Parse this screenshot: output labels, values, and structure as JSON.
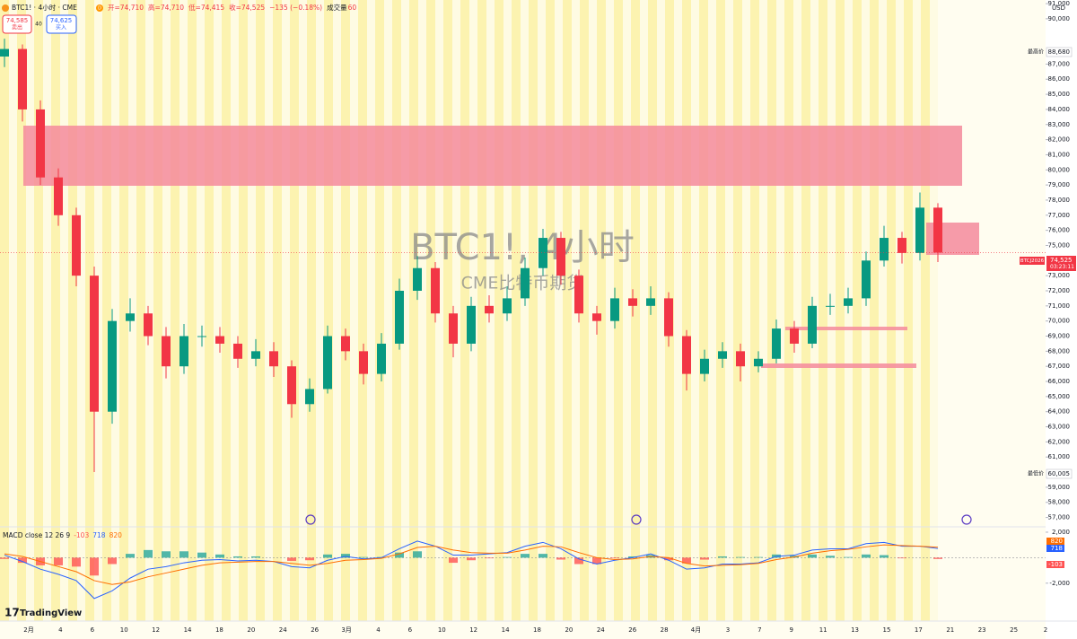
{
  "chart_data": [
    {
      "type": "candlestick",
      "up_color": "#089981",
      "down_color": "#f23645",
      "x_labels": [
        "2月",
        "4",
        "6",
        "10",
        "12",
        "14",
        "18",
        "20",
        "24",
        "26",
        "3月",
        "4",
        "6",
        "10",
        "12",
        "14",
        "18",
        "20",
        "24",
        "26",
        "28",
        "4月",
        "3",
        "7",
        "9",
        "11",
        "13",
        "15",
        "17",
        "21",
        "23",
        "25",
        "2"
      ],
      "open": [
        87500,
        88000,
        84000,
        79500,
        77000,
        73000,
        64000,
        70000,
        70500,
        69000,
        67000,
        69000,
        69000,
        68500,
        67500,
        68000,
        67000,
        64500,
        65500,
        69000,
        68000,
        66500,
        68500,
        72000,
        73500,
        70500,
        68500,
        71000,
        70500,
        71500,
        73500,
        75500,
        73000,
        70500,
        70000,
        71500,
        71000,
        71500,
        69000,
        66500,
        67500,
        68000,
        67000,
        67500,
        69500,
        68500,
        71000,
        71000,
        71500,
        74000,
        75500,
        74500,
        77500
      ],
      "high": [
        88680,
        88300,
        84600,
        80100,
        77500,
        73600,
        70800,
        71500,
        71000,
        69600,
        69800,
        69700,
        69600,
        69000,
        68800,
        68600,
        67400,
        66200,
        69700,
        69500,
        68500,
        69200,
        72800,
        74300,
        73900,
        71000,
        71600,
        71700,
        72300,
        74200,
        76100,
        75900,
        73400,
        71000,
        72200,
        72100,
        72300,
        71900,
        69400,
        68100,
        68600,
        68500,
        68000,
        70100,
        70000,
        71600,
        71800,
        72200,
        74600,
        76300,
        75900,
        78500,
        77800
      ],
      "low": [
        86800,
        83200,
        79000,
        76300,
        72300,
        60005,
        63200,
        69300,
        68400,
        66200,
        66500,
        68300,
        67900,
        66900,
        67000,
        66300,
        63600,
        64000,
        65200,
        67400,
        65800,
        66000,
        68100,
        71400,
        69900,
        67600,
        68000,
        69900,
        70000,
        71000,
        73000,
        72400,
        69900,
        69100,
        69500,
        70300,
        70400,
        68300,
        65400,
        66000,
        66900,
        66000,
        66600,
        67200,
        67900,
        68200,
        70400,
        70500,
        71000,
        73600,
        73800,
        74000,
        73900
      ],
      "close": [
        88000,
        84000,
        79500,
        77000,
        73000,
        64000,
        70000,
        70500,
        69000,
        67000,
        69000,
        69000,
        68500,
        67500,
        68000,
        67000,
        64500,
        65500,
        69000,
        68000,
        66500,
        68500,
        72000,
        73500,
        70500,
        68500,
        71000,
        70500,
        71500,
        73500,
        75500,
        73000,
        70500,
        70000,
        71500,
        71000,
        71500,
        69000,
        66500,
        67500,
        68000,
        67000,
        67500,
        69500,
        68500,
        71000,
        71000,
        71500,
        74000,
        75500,
        74500,
        77500,
        74525
      ],
      "ylim": [
        56500,
        91240
      ],
      "yticks": [
        {
          "value": 91000,
          "label": "91,000"
        },
        {
          "value": 90000,
          "label": "90,000"
        },
        {
          "value": 87000,
          "label": "87,000"
        },
        {
          "value": 86000,
          "label": "86,000"
        },
        {
          "value": 85000,
          "label": "85,000"
        },
        {
          "value": 84000,
          "label": "84,000"
        },
        {
          "value": 83000,
          "label": "83,000"
        },
        {
          "value": 82000,
          "label": "82,000"
        },
        {
          "value": 81000,
          "label": "81,000"
        },
        {
          "value": 80000,
          "label": "80,000"
        },
        {
          "value": 79000,
          "label": "79,000"
        },
        {
          "value": 78000,
          "label": "78,000"
        },
        {
          "value": 77000,
          "label": "77,000"
        },
        {
          "value": 76000,
          "label": "76,000"
        },
        {
          "value": 75000,
          "label": "75,000"
        },
        {
          "value": 73000,
          "label": "73,000"
        },
        {
          "value": 72000,
          "label": "72,000"
        },
        {
          "value": 71000,
          "label": "71,000"
        },
        {
          "value": 70000,
          "label": "70,000"
        },
        {
          "value": 69000,
          "label": "69,000"
        },
        {
          "value": 68000,
          "label": "68,000"
        },
        {
          "value": 67000,
          "label": "67,000"
        },
        {
          "value": 66000,
          "label": "66,000"
        },
        {
          "value": 65000,
          "label": "65,000"
        },
        {
          "value": 64000,
          "label": "64,000"
        },
        {
          "value": 63000,
          "label": "63,000"
        },
        {
          "value": 62000,
          "label": "62,000"
        },
        {
          "value": 61000,
          "label": "61,000"
        },
        {
          "value": 59000,
          "label": "59,000"
        },
        {
          "value": 58000,
          "label": "58,000"
        },
        {
          "value": 57000,
          "label": "57,000"
        }
      ],
      "watermark": "BTC1!, 4小时",
      "watermark_subtitle": "CME比特币期货"
    },
    {
      "type": "macd",
      "title": "MACD close 12 26 9",
      "histogram": {
        "values": [
          -100,
          -400,
          -600,
          -600,
          -700,
          -1400,
          -500,
          300,
          600,
          500,
          500,
          400,
          250,
          100,
          100,
          0,
          -250,
          -200,
          250,
          300,
          50,
          50,
          400,
          500,
          0,
          -400,
          -200,
          -50,
          50,
          300,
          300,
          -150,
          -500,
          -500,
          -50,
          100,
          200,
          -200,
          -450,
          -150,
          100,
          50,
          50,
          250,
          150,
          250,
          150,
          50,
          250,
          200,
          -50,
          0,
          -103
        ],
        "positive_color": "#26a69a",
        "negative_color": "#ff5252"
      },
      "series": [
        {
          "name": "MACD",
          "color": "#2962ff",
          "values": [
            200,
            -300,
            -900,
            -1300,
            -1800,
            -3200,
            -2600,
            -1600,
            -900,
            -700,
            -400,
            -200,
            -150,
            -250,
            -200,
            -300,
            -700,
            -800,
            -200,
            100,
            -100,
            0,
            700,
            1300,
            900,
            200,
            200,
            300,
            400,
            900,
            1200,
            700,
            -100,
            -500,
            -200,
            0,
            300,
            -200,
            -900,
            -800,
            -500,
            -500,
            -400,
            100,
            200,
            600,
            700,
            700,
            1100,
            1200,
            900,
            900,
            718
          ]
        },
        {
          "name": "Signal",
          "color": "#ff6d00",
          "values": [
            300,
            100,
            -300,
            -700,
            -1100,
            -1800,
            -2100,
            -1900,
            -1500,
            -1200,
            -900,
            -600,
            -400,
            -350,
            -300,
            -300,
            -450,
            -600,
            -450,
            -200,
            -150,
            -50,
            300,
            800,
            900,
            600,
            400,
            350,
            350,
            600,
            900,
            850,
            400,
            0,
            -150,
            -100,
            100,
            0,
            -450,
            -650,
            -600,
            -550,
            -450,
            -150,
            50,
            350,
            550,
            650,
            850,
            1000,
            950,
            900,
            820
          ]
        }
      ],
      "ylim": [
        -4900,
        2350
      ],
      "yticks": [
        {
          "value": 2000,
          "label": "2,000"
        },
        {
          "value": -2000,
          "label": "-2,000"
        }
      ]
    }
  ],
  "header": {
    "symbol": "BTC1! · 4小时 · CME",
    "interval_badge": "D",
    "ohlc": [
      "开=74,710",
      "高=74,710",
      "低=74,415",
      "收=74,525",
      "−135 (−0.18%)"
    ],
    "volume_key": "成交量",
    "volume": "60"
  },
  "trade_panel": {
    "sell_price": "74,585",
    "sell": "卖出",
    "spread": "40",
    "buy_price": "74,625",
    "buy": "买入"
  },
  "price_scale": {
    "currency": "USD",
    "high_key": "最高价",
    "high": "88,680",
    "low_key": "最低价",
    "low": "60,005",
    "contract": "BTCJ2026",
    "last": "74,525",
    "countdown": "03:23:11"
  },
  "branding": "TradingView"
}
